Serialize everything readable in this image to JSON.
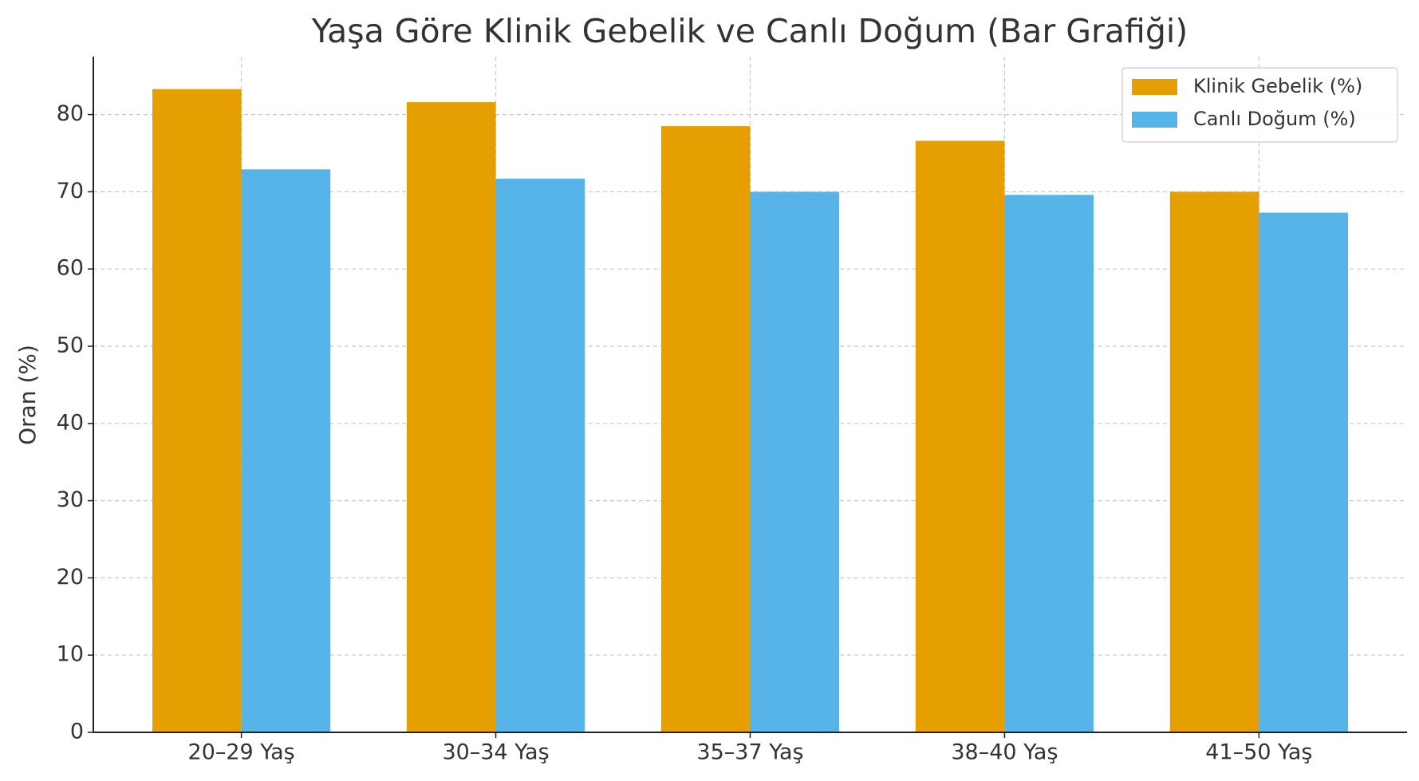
{
  "chart_data": {
    "type": "bar",
    "title": "Yaşa Göre Klinik Gebelik ve Canlı Doğum (Bar Grafiği)",
    "y_label": "Oran (%)",
    "categories": [
      "20–29 Yaş",
      "30–34 Yaş",
      "35–37 Yaş",
      "38–40 Yaş",
      "41–50 Yaş"
    ],
    "series": [
      {
        "name": "Klinik Gebelik (%)",
        "color": "#e69f00",
        "values": [
          83.3,
          81.6,
          78.5,
          76.6,
          70.0
        ]
      },
      {
        "name": "Canlı Doğum (%)",
        "color": "#56b4e9",
        "values": [
          72.9,
          71.7,
          70.0,
          69.6,
          67.3
        ]
      }
    ],
    "ylim": [
      0,
      87.5
    ],
    "yticks": [
      0,
      10,
      20,
      30,
      40,
      50,
      60,
      70,
      80
    ],
    "grid": true,
    "legend": "upper right"
  }
}
